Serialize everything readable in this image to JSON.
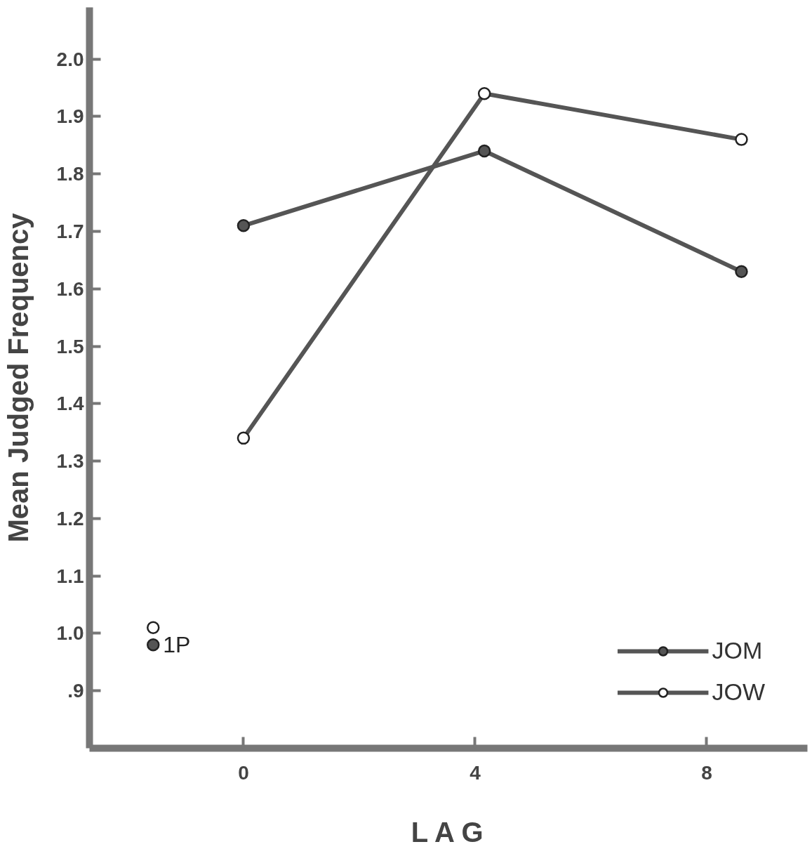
{
  "chart_data": {
    "type": "line",
    "xlabel": "L A G",
    "ylabel": "Mean Judged Frequency",
    "xlim": [
      -2.66,
      9.74
    ],
    "ylim": [
      0.8,
      2.09
    ],
    "xticks": [
      0,
      4,
      8
    ],
    "yticks": [
      {
        "value": 0.9,
        "label": ".9"
      },
      {
        "value": 1.0,
        "label": "1.0"
      },
      {
        "value": 1.1,
        "label": "1.1"
      },
      {
        "value": 1.2,
        "label": "1.2"
      },
      {
        "value": 1.3,
        "label": "1.3"
      },
      {
        "value": 1.4,
        "label": "1.4"
      },
      {
        "value": 1.5,
        "label": "1.5"
      },
      {
        "value": 1.6,
        "label": "1.6"
      },
      {
        "value": 1.7,
        "label": "1.7"
      },
      {
        "value": 1.8,
        "label": "1.8"
      },
      {
        "value": 1.9,
        "label": "1.9"
      },
      {
        "value": 2.0,
        "label": "2.0"
      }
    ],
    "series": [
      {
        "name": "JOM",
        "color": "#555555",
        "x": [
          0,
          4.16,
          8.6
        ],
        "values": [
          1.71,
          1.84,
          1.63
        ],
        "marker": "circle"
      },
      {
        "name": "JOW",
        "color": "#ffffff",
        "x": [
          0,
          4.16,
          8.6
        ],
        "values": [
          1.34,
          1.94,
          1.86
        ],
        "marker": "circle"
      },
      {
        "type": "scatter",
        "color": "#555555",
        "x": [
          -1.56
        ],
        "values": [
          0.98
        ],
        "marker": "circle"
      },
      {
        "type": "scatter",
        "color": "#ffffff",
        "x": [
          -1.56
        ],
        "values": [
          1.01
        ],
        "marker": "circle"
      }
    ],
    "annotations": [
      {
        "text": "1P",
        "x": -1.56,
        "y": 0.98
      }
    ],
    "legend": "bottom right",
    "grid": false,
    "line_style": "solid"
  }
}
